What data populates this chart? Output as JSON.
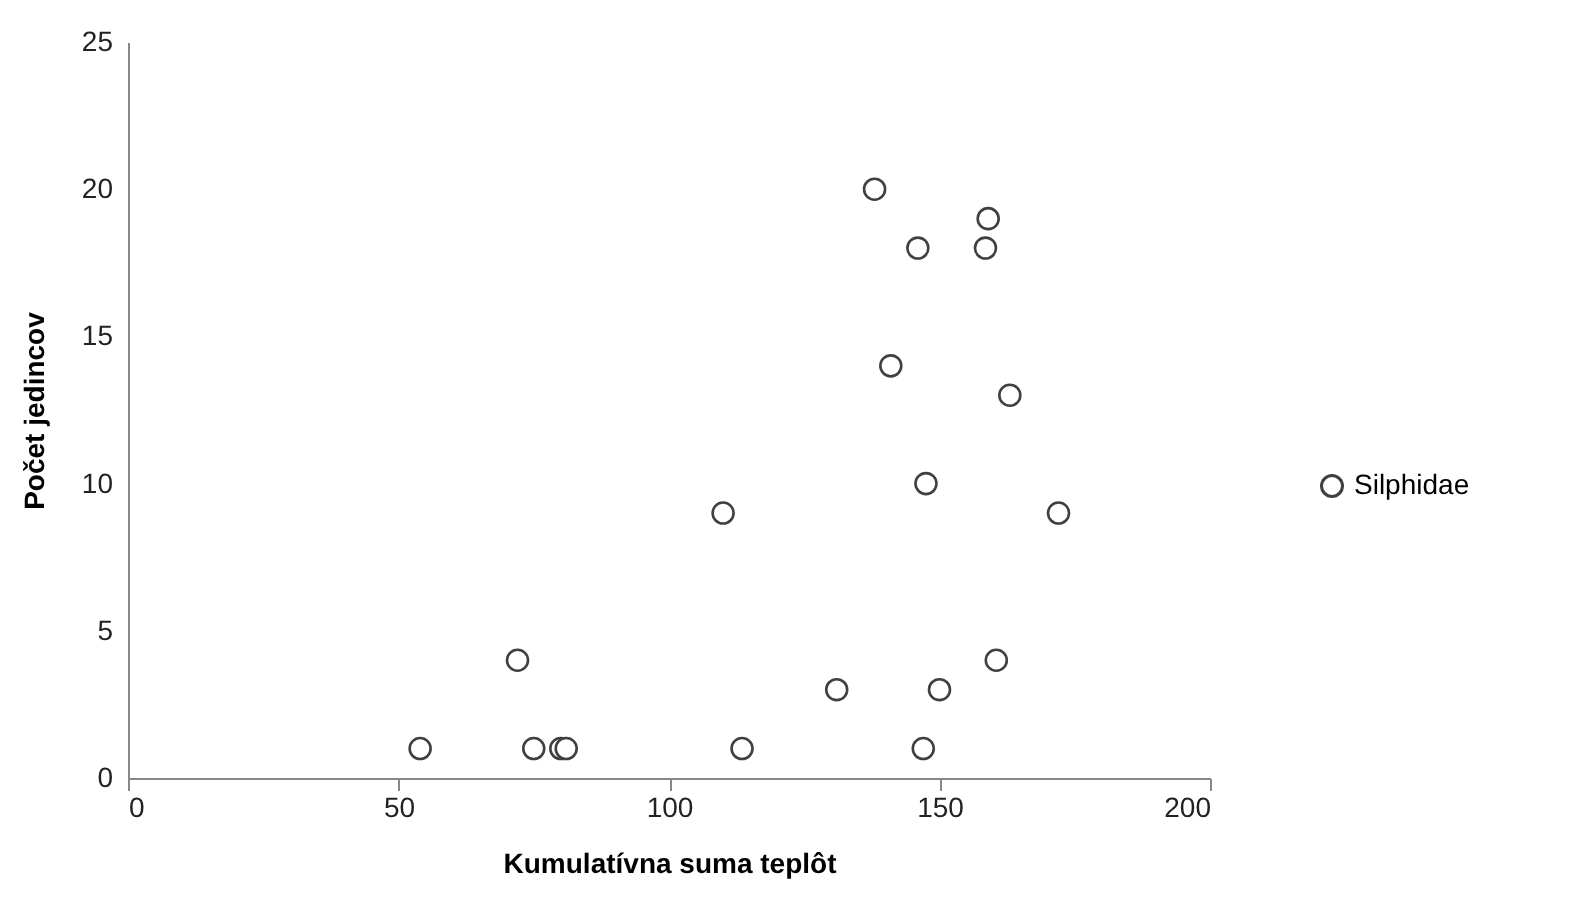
{
  "chart_data": {
    "type": "scatter",
    "xlabel": "Kumulatívna suma teplôt",
    "ylabel": "Počet jedincov",
    "xlim": [
      0,
      200
    ],
    "xticks": [
      0,
      50,
      100,
      150,
      200
    ],
    "ylim": [
      0,
      25
    ],
    "yticks": [
      0,
      5,
      10,
      15,
      20,
      25
    ],
    "grid": false,
    "legend": "right",
    "marker": "circle",
    "series": [
      {
        "name": "Silphidae",
        "color": "#404040",
        "x": [
          54,
          72,
          75,
          80,
          81,
          110,
          113.5,
          131,
          138,
          141,
          146,
          147,
          147.5,
          150,
          158.5,
          159,
          160.5,
          163,
          172
        ],
        "values": [
          1,
          4,
          1,
          1,
          1,
          9,
          1,
          3,
          20,
          14,
          18,
          1,
          10,
          3,
          18,
          19,
          4,
          13,
          9
        ]
      }
    ]
  }
}
